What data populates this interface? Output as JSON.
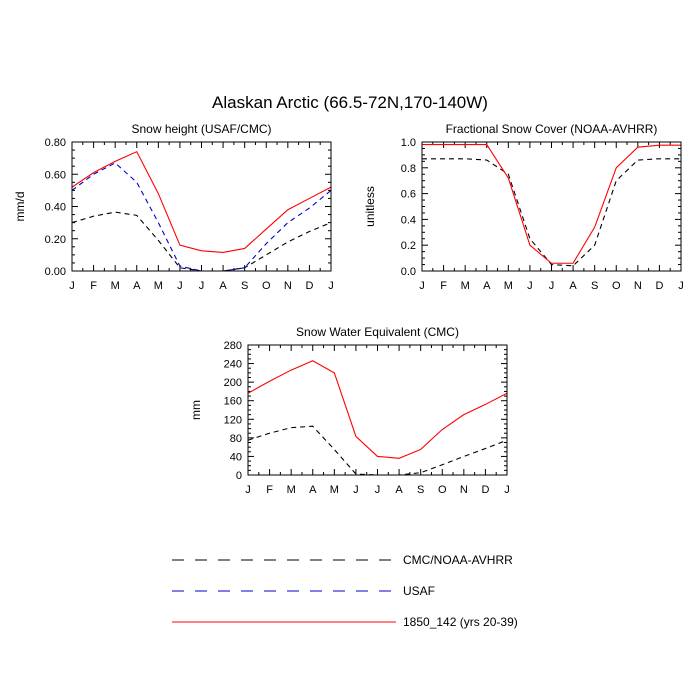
{
  "figure": {
    "title": "Alaskan Arctic (66.5-72N,170-140W)"
  },
  "chart_data": [
    {
      "id": "panel-snow-height",
      "type": "line",
      "title": "Snow height (USAF/CMC)",
      "xlabel": "",
      "ylabel": "mm/d",
      "categories": [
        "J",
        "F",
        "M",
        "A",
        "M",
        "J",
        "J",
        "A",
        "S",
        "O",
        "N",
        "D",
        "J"
      ],
      "ylim": [
        0,
        0.8
      ],
      "yticks": [
        0,
        0.2,
        0.4,
        0.6,
        0.8
      ],
      "ytick_labels": [
        "0.00",
        "0.20",
        "0.40",
        "0.60",
        "0.80"
      ],
      "grid": false,
      "series": [
        {
          "name": "CMC/NOAA-AVHRR",
          "color": "#000000",
          "dash": true,
          "values": [
            0.3,
            0.34,
            0.365,
            0.345,
            0.19,
            0.02,
            0.0,
            0.0,
            0.02,
            0.1,
            0.18,
            0.245,
            0.3
          ]
        },
        {
          "name": "USAF",
          "color": "#0000cc",
          "dash": true,
          "values": [
            0.5,
            0.6,
            0.67,
            0.55,
            0.3,
            0.03,
            0.0,
            0.0,
            0.02,
            0.17,
            0.3,
            0.39,
            0.5
          ]
        },
        {
          "name": "1850_142 (yrs 20-39)",
          "color": "#ff0000",
          "dash": false,
          "values": [
            0.52,
            0.61,
            0.68,
            0.74,
            0.48,
            0.16,
            0.125,
            0.115,
            0.14,
            0.26,
            0.38,
            0.45,
            0.52
          ]
        }
      ]
    },
    {
      "id": "panel-snow-cover",
      "type": "line",
      "title": "Fractional Snow Cover (NOAA-AVHRR)",
      "xlabel": "",
      "ylabel": "unitless",
      "categories": [
        "J",
        "F",
        "M",
        "A",
        "M",
        "J",
        "J",
        "A",
        "S",
        "O",
        "N",
        "D",
        "J"
      ],
      "ylim": [
        0,
        1.0
      ],
      "yticks": [
        0,
        0.2,
        0.4,
        0.6,
        0.8,
        1.0
      ],
      "ytick_labels": [
        "0.0",
        "0.2",
        "0.4",
        "0.6",
        "0.8",
        "1.0"
      ],
      "grid": false,
      "series": [
        {
          "name": "CMC/NOAA-AVHRR",
          "color": "#000000",
          "dash": true,
          "values": [
            0.87,
            0.87,
            0.87,
            0.86,
            0.75,
            0.25,
            0.05,
            0.04,
            0.2,
            0.7,
            0.86,
            0.87,
            0.87
          ]
        },
        {
          "name": "1850_142 (yrs 20-39)",
          "color": "#ff0000",
          "dash": false,
          "values": [
            0.98,
            0.98,
            0.98,
            0.98,
            0.72,
            0.2,
            0.06,
            0.06,
            0.34,
            0.8,
            0.96,
            0.975,
            0.975
          ]
        }
      ]
    },
    {
      "id": "panel-swe",
      "type": "line",
      "title": "Snow Water Equivalent (CMC)",
      "xlabel": "",
      "ylabel": "mm",
      "categories": [
        "J",
        "F",
        "M",
        "A",
        "M",
        "J",
        "J",
        "A",
        "S",
        "O",
        "N",
        "D",
        "J"
      ],
      "ylim": [
        0,
        280
      ],
      "yticks": [
        0,
        40,
        80,
        120,
        160,
        200,
        240,
        280
      ],
      "ytick_labels": [
        "0",
        "40",
        "80",
        "120",
        "160",
        "200",
        "240",
        "280"
      ],
      "grid": false,
      "series": [
        {
          "name": "CMC/NOAA-AVHRR",
          "color": "#000000",
          "dash": true,
          "values": [
            75,
            90,
            102,
            105,
            55,
            2,
            0,
            0,
            5,
            22,
            40,
            57,
            75
          ]
        },
        {
          "name": "1850_142 (yrs 20-39)",
          "color": "#ff0000",
          "dash": false,
          "values": [
            176,
            202,
            226,
            246,
            220,
            83,
            40,
            36,
            55,
            98,
            130,
            152,
            176
          ]
        }
      ]
    }
  ],
  "legend": {
    "placement": "bottom-center",
    "entries": [
      {
        "label": "CMC/NOAA-AVHRR",
        "color": "#000000",
        "dash": true
      },
      {
        "label": "USAF",
        "color": "#0000cc",
        "dash": true
      },
      {
        "label": "1850_142 (yrs 20-39)",
        "color": "#ff0000",
        "dash": false
      }
    ]
  }
}
